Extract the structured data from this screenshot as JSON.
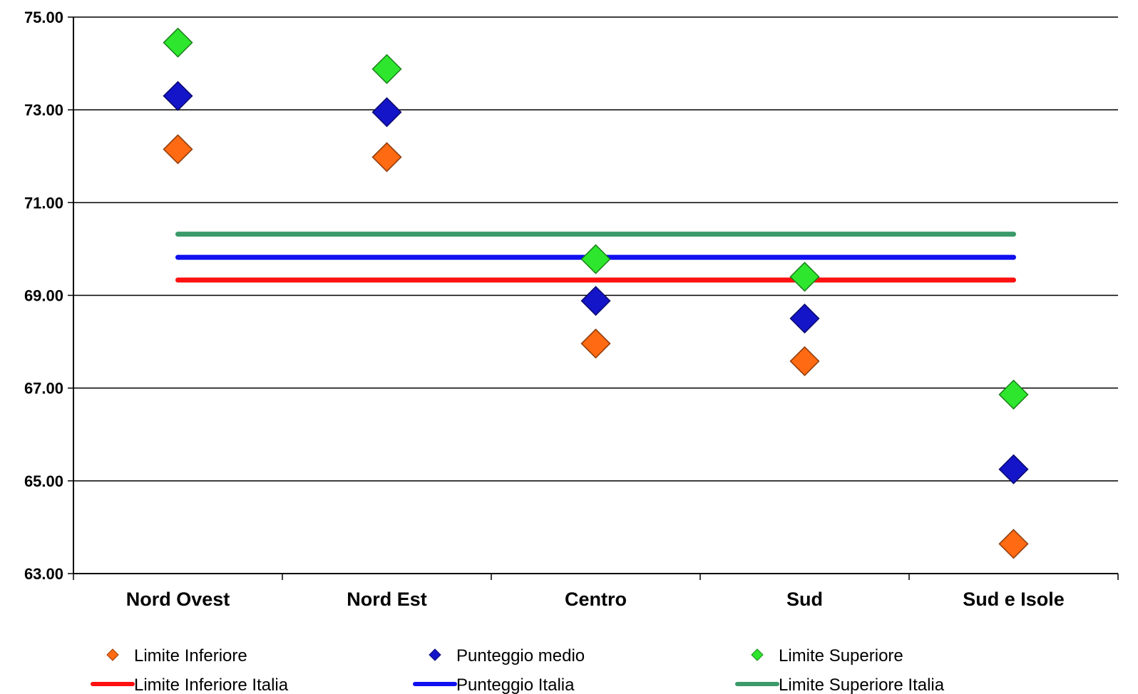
{
  "chart_data": {
    "type": "scatter",
    "categories": [
      "Nord Ovest",
      "Nord Est",
      "Centro",
      "Sud",
      "Sud e Isole"
    ],
    "y_ticks": [
      "63.00",
      "65.00",
      "67.00",
      "69.00",
      "71.00",
      "73.00",
      "75.00"
    ],
    "ylim": [
      63,
      75
    ],
    "grid": true,
    "legend_position": "bottom",
    "series": [
      {
        "name": "Limite Inferiore",
        "kind": "marker",
        "color": "#ff6a13",
        "values": [
          72.15,
          71.98,
          67.96,
          67.58,
          63.64
        ]
      },
      {
        "name": "Punteggio medio",
        "kind": "marker",
        "color": "#1414c8",
        "values": [
          73.3,
          72.95,
          68.88,
          68.5,
          65.25
        ]
      },
      {
        "name": "Limite Superiore",
        "kind": "marker",
        "color": "#2ee62e",
        "values": [
          74.45,
          73.88,
          69.78,
          69.4,
          66.86
        ]
      },
      {
        "name": "Limite Inferiore Italia",
        "kind": "line",
        "color": "#ff1010",
        "value": 69.33
      },
      {
        "name": "Punteggio Italia",
        "kind": "line",
        "color": "#1010f0",
        "value": 69.82
      },
      {
        "name": "Limite Superiore Italia",
        "kind": "line",
        "color": "#3a9a6a",
        "value": 70.32
      }
    ]
  }
}
